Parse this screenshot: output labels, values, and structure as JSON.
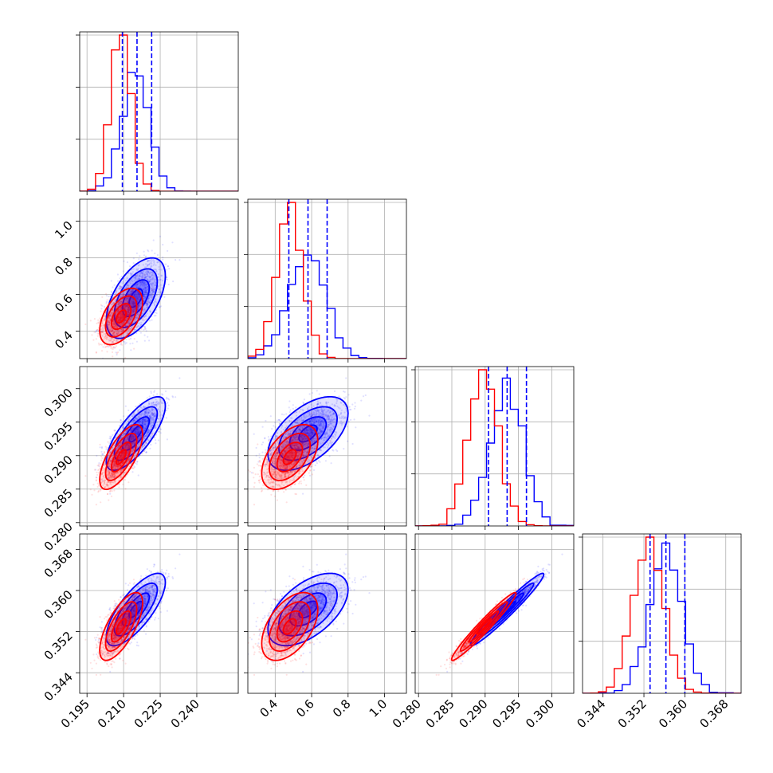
{
  "chart_data": {
    "type": "corner",
    "grid": true,
    "colors": {
      "blue": "#0000ff",
      "red": "#ff0000"
    },
    "series": [
      {
        "color": "#0000ff",
        "mean": [
          0.215,
          0.58,
          0.2933,
          0.3563
        ],
        "sd": [
          0.0055,
          0.1,
          0.0025,
          0.0032
        ],
        "corr": [
          [
            1,
            0.55,
            0.75,
            0.75
          ],
          [
            0.55,
            1,
            0.55,
            0.55
          ],
          [
            0.75,
            0.55,
            1,
            0.97
          ],
          [
            0.75,
            0.55,
            0.97,
            1
          ]
        ],
        "quantiles": [
          [
            0.2095,
            0.2155,
            0.2215
          ],
          [
            0.475,
            0.58,
            0.685
          ],
          [
            0.2905,
            0.2933,
            0.2962
          ],
          [
            0.3532,
            0.3563,
            0.36
          ]
        ]
      },
      {
        "color": "#ff0000",
        "mean": [
          0.209,
          0.48,
          0.2898,
          0.353
        ],
        "sd": [
          0.004,
          0.07,
          0.0022,
          0.003
        ],
        "corr": [
          [
            1,
            0.5,
            0.7,
            0.7
          ],
          [
            0.5,
            1,
            0.5,
            0.5
          ],
          [
            0.7,
            0.5,
            1,
            0.97
          ],
          [
            0.7,
            0.5,
            0.97,
            1
          ]
        ]
      }
    ],
    "parameters": [
      {
        "range": [
          0.192,
          0.257
        ],
        "ticks": [
          "0.195",
          "0.210",
          "0.225",
          "0.240"
        ]
      },
      {
        "range": [
          0.25,
          1.12
        ],
        "ticks": [
          "0.4",
          "0.6",
          "0.8",
          "1.0"
        ]
      },
      {
        "range": [
          0.2795,
          0.3033
        ],
        "ticks": [
          "0.280",
          "0.285",
          "0.290",
          "0.295",
          "0.300"
        ]
      },
      {
        "range": [
          0.34,
          0.371
        ],
        "ticks": [
          "0.344",
          "0.352",
          "0.360",
          "0.368"
        ]
      }
    ]
  }
}
